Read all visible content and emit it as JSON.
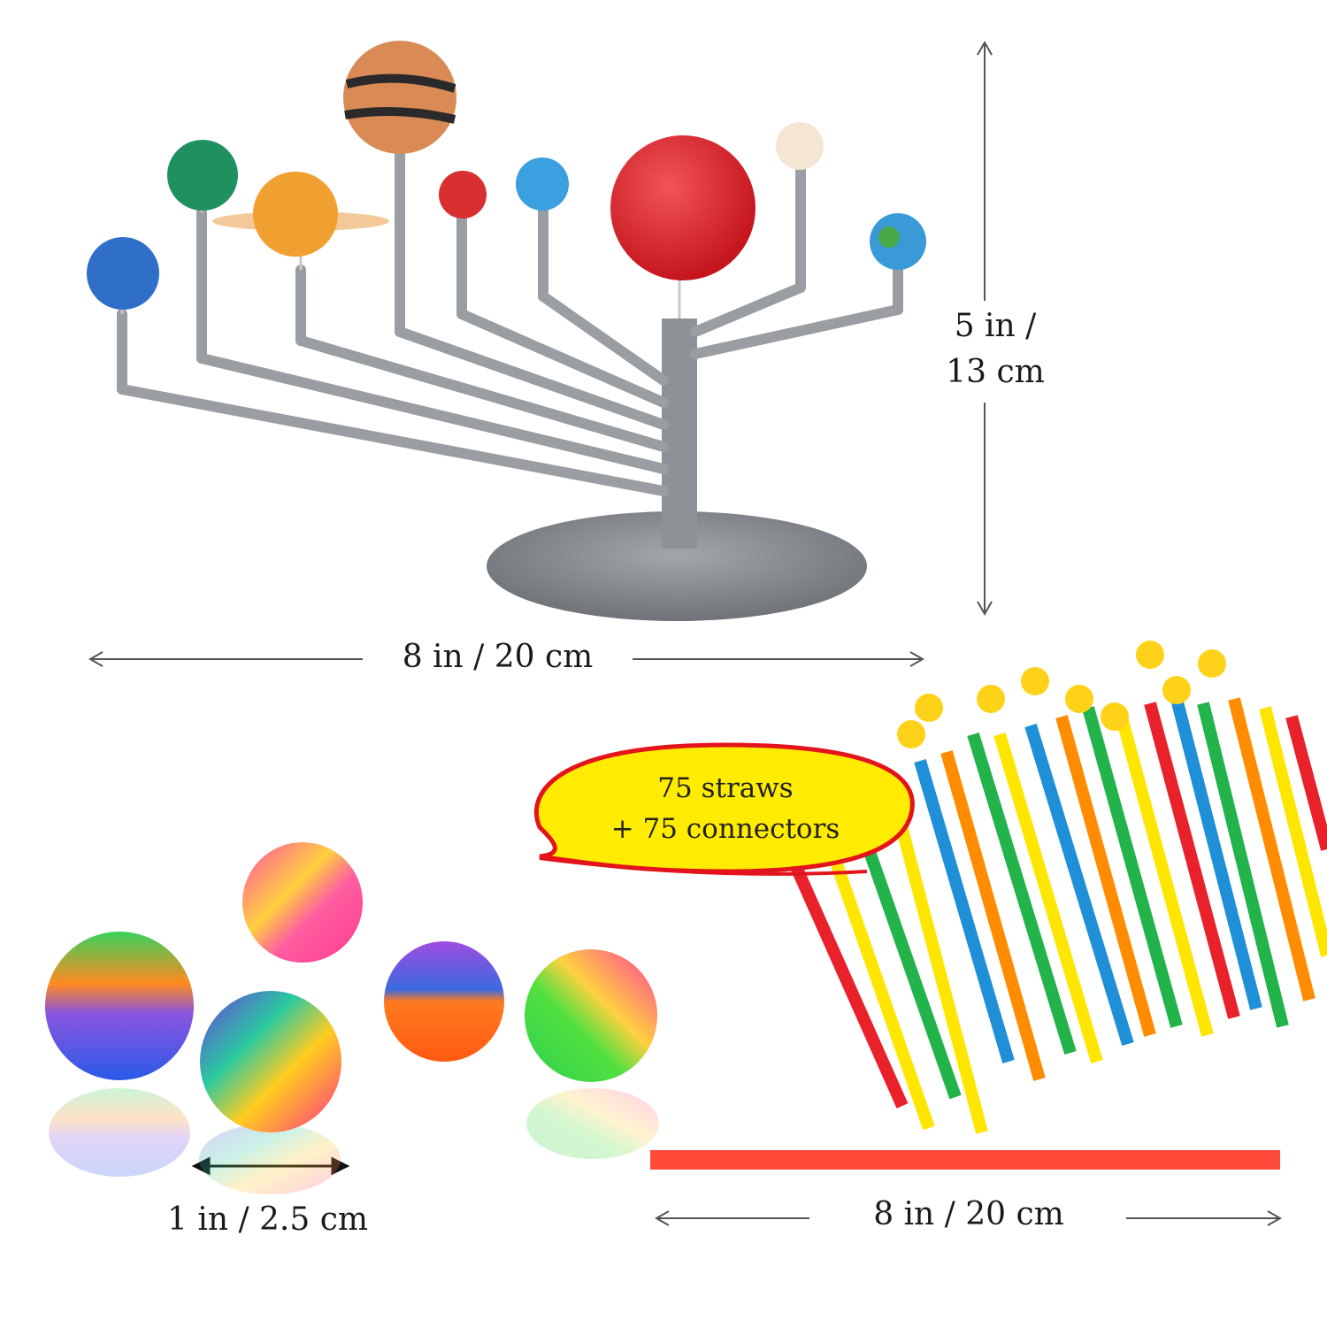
{
  "dimensions": {
    "model_height": "5 in /",
    "model_height_metric": "13 cm",
    "model_width": "8 in / 20 cm",
    "ball_diameter": "1 in / 2.5 cm",
    "straw_length": "8 in / 20 cm"
  },
  "callout": {
    "line1": "75 straws",
    "line2": "+ 75 connectors"
  },
  "colors": {
    "stand": "#8e9296",
    "sun": "#e0232c",
    "callout_fill": "#ffec00",
    "callout_border": "#e3141b",
    "straw_colors": [
      "#ffe600",
      "#1f8fd8",
      "#22b34a",
      "#ff8c00",
      "#e8212a"
    ]
  }
}
